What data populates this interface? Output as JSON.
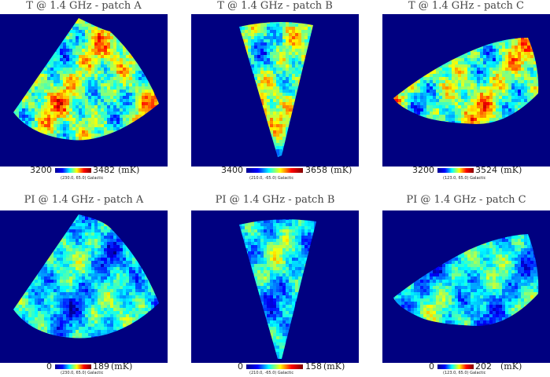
{
  "colors": {
    "background": "#000080",
    "field": "#0000ff"
  },
  "chart_data": [
    {
      "type": "heatmap",
      "title": "T @ 1.4 GHz - patch A",
      "min_label": "3200",
      "max_label": "3482",
      "unit": "(mK)",
      "coords": "(230.0, 65.0) Galactic",
      "range": [
        3200,
        3482
      ]
    },
    {
      "type": "heatmap",
      "title": "T @ 1.4 GHz - patch B",
      "min_label": "3400",
      "max_label": "3658",
      "unit": "(mK)",
      "coords": "(210.0, -65.0) Galactic",
      "range": [
        3400,
        3658
      ]
    },
    {
      "type": "heatmap",
      "title": "T @ 1.4 GHz - patch C",
      "min_label": "3200",
      "max_label": "3524",
      "unit": "(mK)",
      "coords": "(123.0, 65.0) Galactic",
      "range": [
        3200,
        3524
      ]
    },
    {
      "type": "heatmap",
      "title": "PI @ 1.4 GHz - patch A",
      "min_label": "0",
      "max_label": "189",
      "unit": "(mK)",
      "coords": "(230.0, 65.0) Galactic",
      "range": [
        0,
        189
      ]
    },
    {
      "type": "heatmap",
      "title": "PI @ 1.4 GHz - patch B",
      "min_label": "0",
      "max_label": "158",
      "unit": "(mK)",
      "coords": "(210.0, -65.0) Galactic",
      "range": [
        0,
        158
      ]
    },
    {
      "type": "heatmap",
      "title": "PI @ 1.4 GHz - patch C",
      "min_label": "0",
      "max_label": "202",
      "unit": "(mK)",
      "coords": "(123.0, 65.0) Galactic",
      "range": [
        0,
        202
      ]
    }
  ]
}
